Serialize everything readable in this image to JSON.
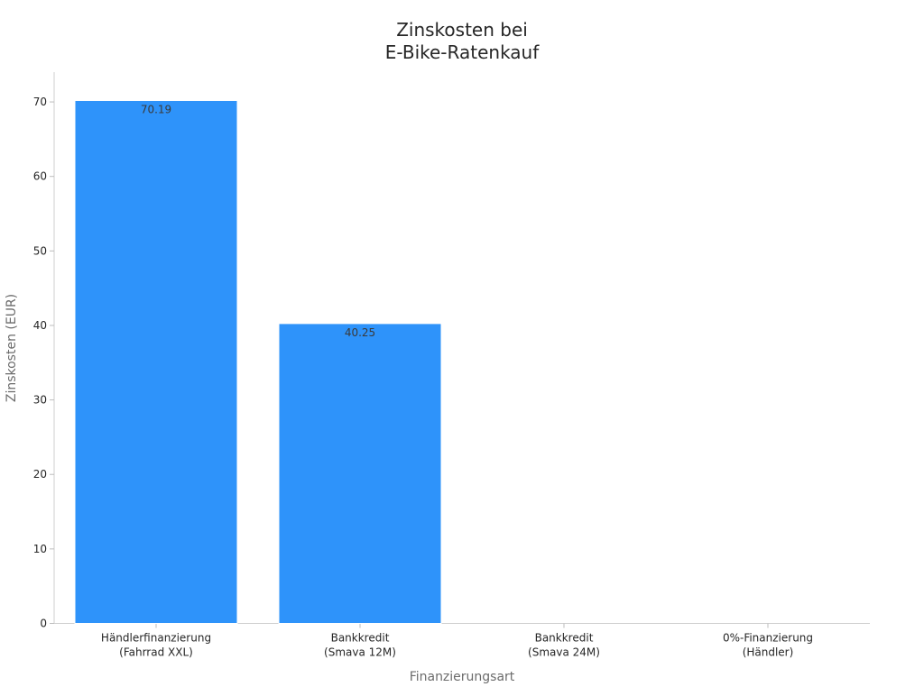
{
  "chart_data": {
    "type": "bar",
    "title": "Zinskosten bei\nE-Bike-Ratenkauf",
    "xlabel": "Finanzierungsart",
    "ylabel": "Zinskosten (EUR)",
    "categories": [
      "Händlerfinanzierung\n(Fahrrad XXL)",
      "Bankkredit\n(Smava 12M)",
      "Bankkredit\n(Smava 24M)",
      "0%-Finanzierung\n(Händler)"
    ],
    "values": [
      70.19,
      40.25,
      0,
      0
    ],
    "data_labels": [
      "70.19",
      "40.25",
      "",
      ""
    ],
    "yticks": [
      0,
      10,
      20,
      30,
      40,
      50,
      60,
      70
    ],
    "ylim": [
      0,
      74
    ],
    "grid": false,
    "bar_color": "#2e93fa"
  }
}
